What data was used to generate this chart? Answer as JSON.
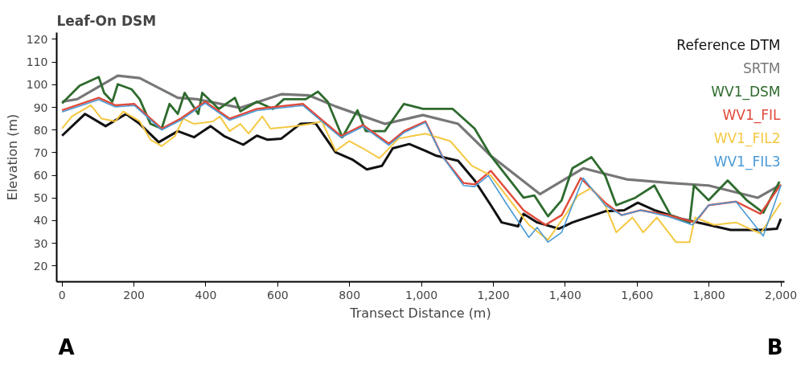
{
  "chart_data": {
    "type": "line",
    "title": "Leaf-On DSM",
    "xlabel": "Transect Distance (m)",
    "ylabel": "Elevation (m)",
    "xlim": [
      -15,
      2010
    ],
    "ylim": [
      13,
      123
    ],
    "xticks": [
      {
        "value": 0,
        "label": "0"
      },
      {
        "value": 200,
        "label": "200"
      },
      {
        "value": 400,
        "label": "400"
      },
      {
        "value": 600,
        "label": "600"
      },
      {
        "value": 800,
        "label": "800"
      },
      {
        "value": 1000,
        "label": "1,000"
      },
      {
        "value": 1200,
        "label": "1,200"
      },
      {
        "value": 1400,
        "label": "1,400"
      },
      {
        "value": 1600,
        "label": "1,600"
      },
      {
        "value": 1800,
        "label": "1,800"
      },
      {
        "value": 2000,
        "label": "2,000"
      }
    ],
    "yticks": [
      20,
      30,
      40,
      50,
      60,
      70,
      80,
      90,
      100,
      110,
      120
    ],
    "grid": false,
    "legend": "top right",
    "marker": "none",
    "line_style": "solid",
    "annotations": [
      "A",
      "B"
    ],
    "series": [
      {
        "name": "Reference DTM",
        "color": "#111111",
        "x": [
          0,
          64,
          121,
          178,
          216,
          269,
          322,
          367,
          413,
          451,
          504,
          542,
          572,
          610,
          663,
          705,
          761,
          807,
          848,
          890,
          920,
          966,
          1011,
          1042,
          1102,
          1148,
          1193,
          1223,
          1269,
          1284,
          1322,
          1382,
          1420,
          1511,
          1564,
          1602,
          1648,
          1723,
          1799,
          1860,
          1943,
          1989,
          2000
        ],
        "values": [
          77.5,
          87.1,
          81.7,
          87.1,
          82.7,
          74.6,
          79.5,
          76.8,
          81.7,
          77.3,
          73.5,
          77.5,
          75.7,
          76.2,
          82.7,
          83,
          70.2,
          67,
          62.6,
          64.2,
          71.9,
          73.8,
          70.8,
          68.6,
          66.4,
          57.7,
          46.8,
          39.2,
          37.5,
          43,
          39.2,
          36.4,
          39.2,
          44.1,
          44.6,
          47.9,
          44.6,
          40.8,
          38.1,
          35.9,
          35.9,
          36.4,
          40.8
        ]
      },
      {
        "name": "SRTM",
        "color": "#777777",
        "x": [
          0,
          42,
          155,
          216,
          322,
          375,
          496,
          610,
          686,
          761,
          898,
          1004,
          1102,
          1193,
          1330,
          1450,
          1572,
          1693,
          1799,
          1936,
          1996
        ],
        "values": [
          92.5,
          93.6,
          104,
          102.9,
          94.2,
          93.6,
          89.8,
          95.8,
          95.3,
          90.4,
          82.7,
          86.6,
          82.7,
          68.6,
          51.7,
          63.1,
          58.2,
          56.6,
          55.5,
          50.1,
          55.5
        ]
      },
      {
        "name": "WV1_DSM",
        "color": "#2e6b2e",
        "x": [
          0,
          49,
          80,
          102,
          117,
          140,
          155,
          193,
          216,
          246,
          277,
          299,
          322,
          341,
          379,
          390,
          436,
          481,
          496,
          542,
          587,
          617,
          678,
          712,
          739,
          780,
          822,
          845,
          898,
          951,
          1004,
          1087,
          1148,
          1193,
          1284,
          1314,
          1352,
          1390,
          1420,
          1473,
          1511,
          1542,
          1595,
          1648,
          1693,
          1746,
          1758,
          1799,
          1852,
          1905,
          1951,
          1996
        ],
        "values": [
          91.8,
          99.6,
          101.8,
          103.4,
          96.4,
          92.5,
          100.2,
          98,
          93.6,
          82.7,
          80.6,
          91.5,
          87.1,
          96.4,
          87.1,
          96.4,
          89.3,
          94.2,
          88.2,
          92.5,
          89.3,
          93.6,
          93.6,
          96.9,
          92.5,
          76.8,
          88.7,
          79.5,
          79.5,
          91.5,
          89.3,
          89.3,
          80.6,
          68.6,
          50.1,
          51.1,
          41.9,
          49,
          63.1,
          68,
          59.9,
          46.8,
          50.1,
          55.5,
          42.4,
          39.2,
          55.5,
          49,
          57.7,
          49,
          43.5,
          57.2
        ]
      },
      {
        "name": "WV1_FIL",
        "color": "#e0493a",
        "x": [
          0,
          102,
          148,
          201,
          277,
          330,
          398,
          466,
          542,
          670,
          776,
          837,
          909,
          951,
          1011,
          1057,
          1117,
          1148,
          1193,
          1284,
          1345,
          1390,
          1443,
          1511,
          1557,
          1610,
          1686,
          1761,
          1799,
          1875,
          1943,
          2000
        ],
        "values": [
          88.7,
          94.2,
          90.9,
          91.5,
          80.6,
          85,
          92.5,
          85,
          89.3,
          91.5,
          77.3,
          82.2,
          74,
          79.5,
          83.8,
          68.6,
          56.6,
          56,
          62,
          44.6,
          38.1,
          42.4,
          58.8,
          47.9,
          42.4,
          44.6,
          42.4,
          39.2,
          46.8,
          48.4,
          43,
          56
        ]
      },
      {
        "name": "WV1_FIL2",
        "color": "#f5c842",
        "x": [
          0,
          27,
          80,
          110,
          148,
          170,
          216,
          246,
          277,
          314,
          337,
          367,
          420,
          439,
          466,
          496,
          519,
          557,
          580,
          648,
          693,
          723,
          761,
          799,
          837,
          883,
          936,
          1011,
          1080,
          1140,
          1193,
          1246,
          1299,
          1352,
          1405,
          1435,
          1473,
          1511,
          1542,
          1587,
          1617,
          1655,
          1708,
          1746,
          1761,
          1814,
          1875,
          1943,
          2000
        ],
        "values": [
          80.6,
          86,
          90.9,
          85,
          83.8,
          88.2,
          83.8,
          75.7,
          72.9,
          77.3,
          85,
          82.7,
          83.8,
          86,
          79.5,
          82.7,
          78.4,
          86,
          80.6,
          81.7,
          82.7,
          83.8,
          70.8,
          75.1,
          71.9,
          67.5,
          76.2,
          78.4,
          75.1,
          64.2,
          59.9,
          49,
          38.1,
          31.5,
          43.5,
          51.1,
          54.4,
          46.8,
          34.8,
          41.4,
          34.8,
          41.4,
          30.5,
          30.5,
          41.4,
          38.1,
          39.2,
          34.3,
          47.9
        ]
      },
      {
        "name": "WV1_FIL3",
        "color": "#4a9ad6",
        "x": [
          0,
          102,
          148,
          201,
          277,
          330,
          398,
          466,
          542,
          670,
          776,
          837,
          909,
          951,
          1011,
          1057,
          1117,
          1148,
          1186,
          1239,
          1299,
          1322,
          1352,
          1390,
          1450,
          1511,
          1557,
          1610,
          1686,
          1754,
          1799,
          1875,
          1951,
          2000
        ],
        "values": [
          88,
          93.4,
          90.2,
          90.8,
          80,
          84.3,
          91.8,
          84.3,
          88.6,
          90.8,
          76.6,
          81.5,
          73.3,
          78.8,
          83.3,
          68.6,
          55.5,
          55,
          59.9,
          46.8,
          32.6,
          37,
          30.5,
          34.8,
          58.8,
          46.8,
          42.4,
          44.6,
          41.8,
          38.1,
          46.8,
          48.4,
          33.2,
          55.5
        ]
      }
    ]
  }
}
